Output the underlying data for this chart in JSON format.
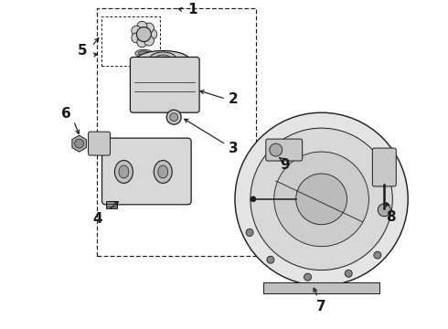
{
  "bg_color": "#ffffff",
  "line_color": "#1a1a1a",
  "fig_width": 4.9,
  "fig_height": 3.6,
  "dpi": 100,
  "label_fontsize": 11
}
